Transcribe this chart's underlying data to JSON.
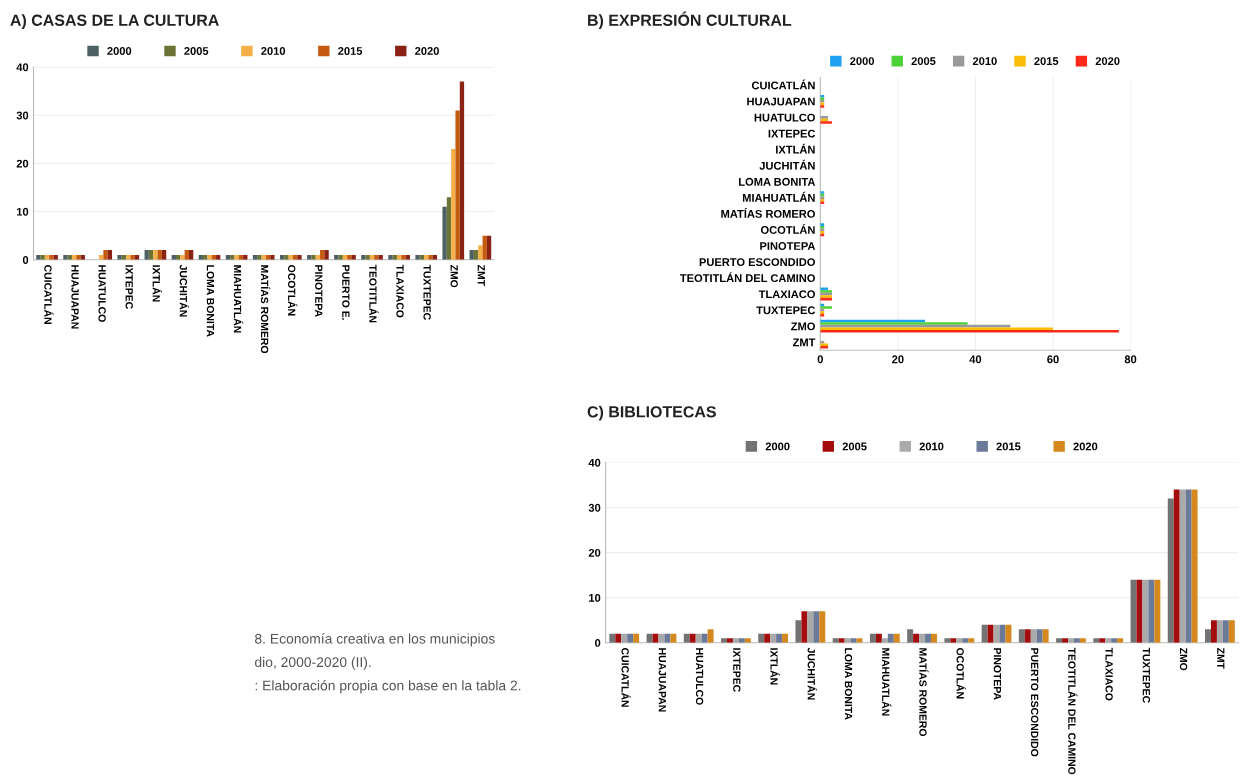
{
  "chart_data": [
    {
      "type": "bar",
      "title": "A) CASAS DE LA CULTURA",
      "categories": [
        "CUICATLÁN",
        "HUAJUAPAN",
        "HUATULCO",
        "IXTEPEC",
        "IXTLÁN",
        "JUCHITÁN",
        "LOMA BONITA",
        "MIAHUATLÁN",
        "MATÍAS ROMERO",
        "OCOTLÁN",
        "PINOTEPA",
        "PUERTO E.",
        "TEOTITLÁN",
        "TLAXIACO",
        "TUXTEPEC",
        "ZMO",
        "ZMT"
      ],
      "series": [
        {
          "name": "2000",
          "color": "#4d6164",
          "values": [
            1,
            1,
            0,
            1,
            2,
            1,
            1,
            1,
            1,
            1,
            1,
            1,
            1,
            1,
            1,
            11,
            2
          ]
        },
        {
          "name": "2005",
          "color": "#6b7336",
          "values": [
            1,
            1,
            0,
            1,
            2,
            1,
            1,
            1,
            1,
            1,
            1,
            1,
            1,
            1,
            1,
            13,
            2
          ]
        },
        {
          "name": "2010",
          "color": "#f5b04a",
          "values": [
            1,
            1,
            1,
            1,
            2,
            1,
            1,
            1,
            1,
            1,
            1,
            1,
            1,
            1,
            1,
            23,
            3
          ]
        },
        {
          "name": "2015",
          "color": "#c55a11",
          "values": [
            1,
            1,
            2,
            1,
            2,
            2,
            1,
            1,
            1,
            1,
            2,
            1,
            1,
            1,
            1,
            31,
            5
          ]
        },
        {
          "name": "2020",
          "color": "#8b2216",
          "values": [
            1,
            1,
            2,
            1,
            2,
            2,
            1,
            1,
            1,
            1,
            2,
            1,
            1,
            1,
            1,
            37,
            5
          ]
        }
      ],
      "ylim": [
        0,
        40
      ],
      "yticks": [
        0,
        10,
        20,
        30,
        40
      ],
      "grid": "y",
      "legend": "top"
    },
    {
      "type": "bar",
      "title": "B) EXPRESIÓN CULTURAL",
      "orientation": "horizontal",
      "categories": [
        "CUICATLÁN",
        "HUAJUAPAN",
        "HUATULCO",
        "IXTEPEC",
        "IXTLÁN",
        "JUCHITÁN",
        "LOMA BONITA",
        "MIAHUATLÁN",
        "MATÍAS ROMERO",
        "OCOTLÁN",
        "PINOTEPA",
        "PUERTO ESCONDIDO",
        "TEOTITLÁN DEL CAMINO",
        "TLAXIACO",
        "TUXTEPEC",
        "ZMO",
        "ZMT"
      ],
      "series": [
        {
          "name": "2000",
          "color": "#1ea1f2",
          "values": [
            0,
            1,
            0,
            0,
            0,
            0,
            0,
            1,
            0,
            1,
            0,
            0,
            0,
            2,
            1,
            27,
            0
          ]
        },
        {
          "name": "2005",
          "color": "#4cd137",
          "values": [
            0,
            1,
            0,
            0,
            0,
            0,
            0,
            1,
            0,
            1,
            0,
            0,
            0,
            3,
            3,
            38,
            0
          ]
        },
        {
          "name": "2010",
          "color": "#999999",
          "values": [
            0,
            1,
            2,
            0,
            0,
            0,
            0,
            1,
            0,
            1,
            0,
            0,
            0,
            3,
            1,
            49,
            1
          ]
        },
        {
          "name": "2015",
          "color": "#fbbc05",
          "values": [
            0,
            1,
            2,
            0,
            0,
            0,
            0,
            1,
            0,
            1,
            0,
            0,
            0,
            3,
            1,
            60,
            2
          ]
        },
        {
          "name": "2020",
          "color": "#ff2a1a",
          "values": [
            0,
            1,
            3,
            0,
            0,
            0,
            0,
            1,
            0,
            1,
            0,
            0,
            0,
            3,
            1,
            77,
            2
          ]
        }
      ],
      "xlim": [
        0,
        80
      ],
      "xticks": [
        0,
        20,
        40,
        60,
        80
      ],
      "grid": "x",
      "legend": "top"
    },
    {
      "type": "bar",
      "title": "C) BIBLIOTECAS",
      "categories": [
        "CUICATLÁN",
        "HUAJUAPAN",
        "HUATULCO",
        "IXTEPEC",
        "IXTLÁN",
        "JUCHITÁN",
        "LOMA BONITA",
        "MIAHUATLÁN",
        "MATÍAS ROMERO",
        "OCOTLÁN",
        "PINOTEPA",
        "PUERTO ESCONDIDO",
        "TEOTITLÁN DEL CAMINO",
        "TLAXIACO",
        "TUXTEPEC",
        "ZMO",
        "ZMT"
      ],
      "series": [
        {
          "name": "2000",
          "color": "#737373",
          "values": [
            2,
            2,
            2,
            1,
            2,
            5,
            1,
            2,
            3,
            1,
            4,
            3,
            1,
            1,
            14,
            32,
            3
          ]
        },
        {
          "name": "2005",
          "color": "#a30d0d",
          "values": [
            2,
            2,
            2,
            1,
            2,
            7,
            1,
            2,
            2,
            1,
            4,
            3,
            1,
            1,
            14,
            34,
            5
          ]
        },
        {
          "name": "2010",
          "color": "#aaaaaa",
          "values": [
            2,
            2,
            2,
            1,
            2,
            7,
            1,
            1,
            2,
            1,
            4,
            3,
            1,
            1,
            14,
            34,
            5
          ]
        },
        {
          "name": "2015",
          "color": "#6b7a99",
          "values": [
            2,
            2,
            2,
            1,
            2,
            7,
            1,
            2,
            2,
            1,
            4,
            3,
            1,
            1,
            14,
            34,
            5
          ]
        },
        {
          "name": "2020",
          "color": "#d4881e",
          "values": [
            2,
            2,
            3,
            1,
            2,
            7,
            1,
            2,
            2,
            1,
            4,
            3,
            1,
            1,
            14,
            34,
            5
          ]
        }
      ],
      "ylim": [
        0,
        40
      ],
      "yticks": [
        0,
        10,
        20,
        30,
        40
      ],
      "grid": "y",
      "legend": "top",
      "annotations": [
        "8. Economía creativa en los municipios",
        "dio, 2000-2020 (II).",
        ": Elaboración propia con base en la tabla 2."
      ]
    }
  ]
}
